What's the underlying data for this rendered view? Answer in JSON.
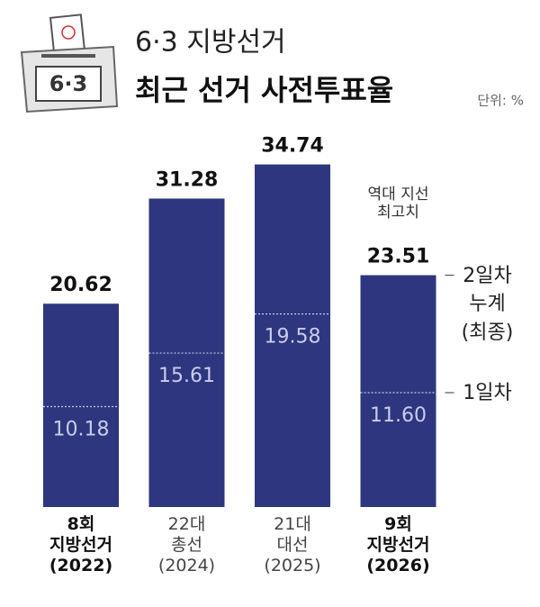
{
  "header": {
    "icon_text": "6·3",
    "title": "6·3 지방선거",
    "subtitle": "최근 선거 사전투표율",
    "unit": "단위: %"
  },
  "chart_data": {
    "type": "bar",
    "categories": [
      "8회\n지방선거\n(2022)",
      "22대\n총선\n(2024)",
      "21대\n대선\n(2025)",
      "9회\n지방선거\n(2026)"
    ],
    "emphasis": [
      true,
      false,
      false,
      true
    ],
    "series": [
      {
        "name": "2일차\n누계\n(최종)",
        "color": "#2d367e",
        "values": [
          20.62,
          31.28,
          34.74,
          23.51
        ]
      },
      {
        "name": "1일차",
        "color": "#c9cdea",
        "values": [
          10.18,
          15.61,
          19.58,
          11.6
        ],
        "value_labels": [
          "10.18",
          "15.61",
          "19.58",
          "11.60"
        ]
      }
    ],
    "annotation": "역대 지선\n최고치",
    "ylim": [
      0,
      40
    ]
  }
}
